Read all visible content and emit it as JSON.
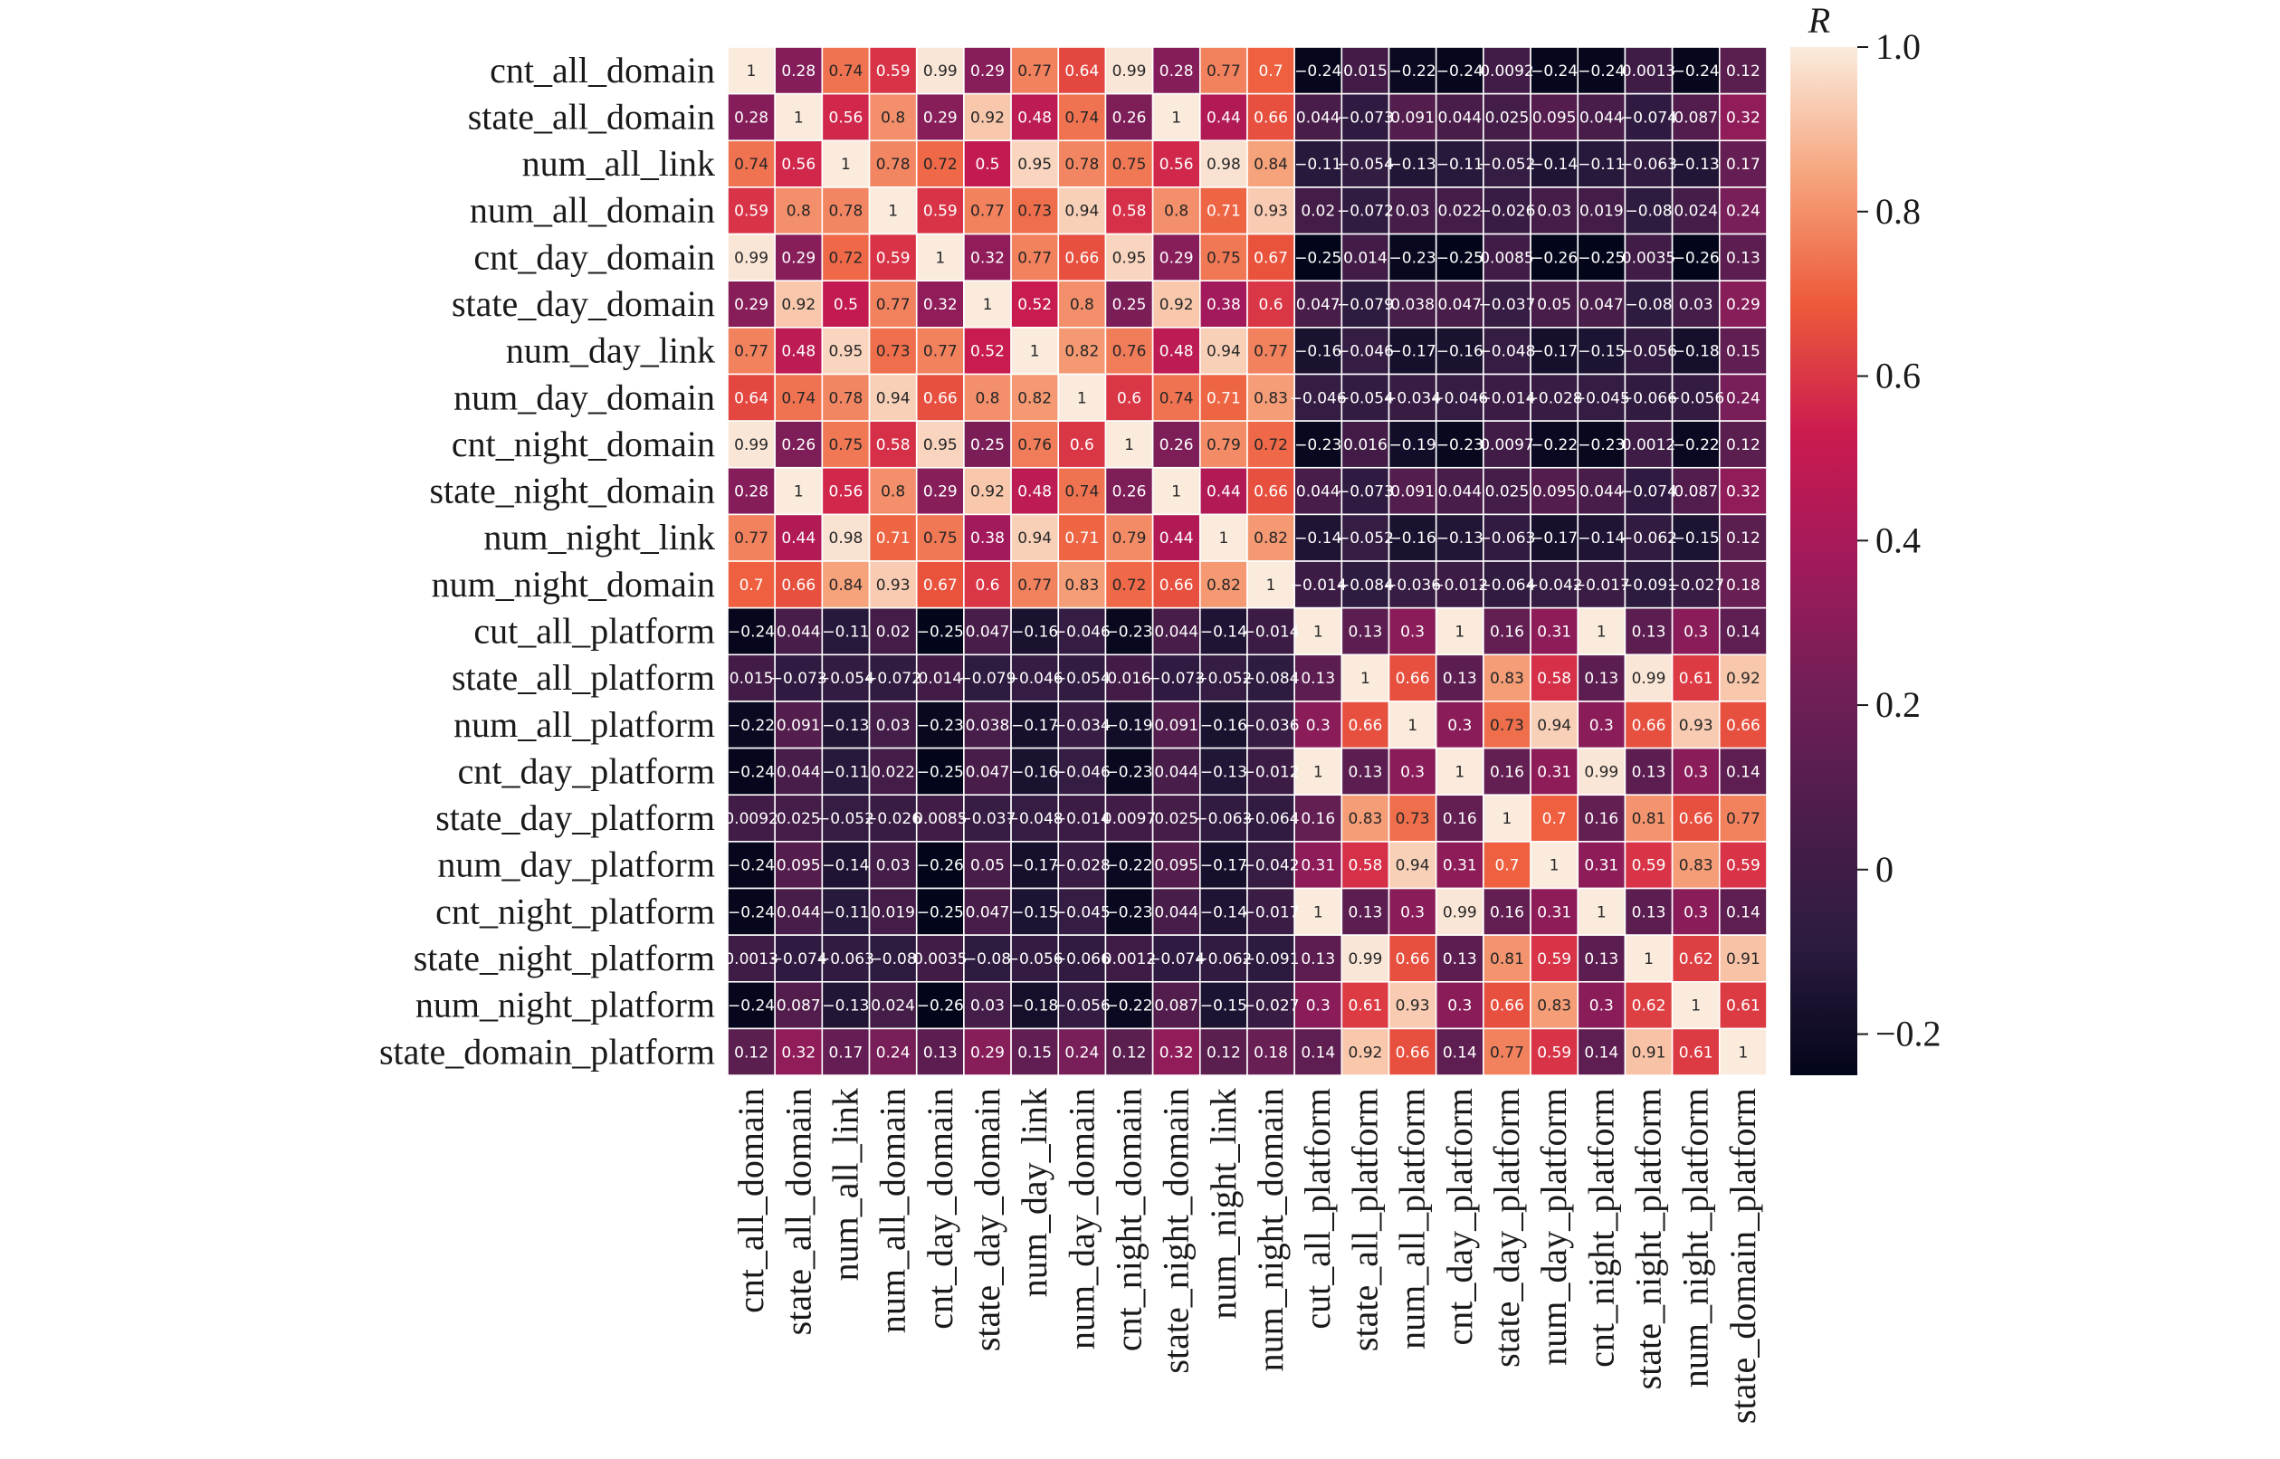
{
  "chart_data": {
    "type": "heatmap",
    "title": "",
    "colorbar": {
      "title": "R",
      "ticks": [
        1.0,
        0.8,
        0.6,
        0.4,
        0.2,
        0,
        -0.2
      ],
      "tick_labels": [
        "1.0",
        "0.8",
        "0.6",
        "0.4",
        "0.2",
        "0",
        "−0.2"
      ],
      "range": [
        -0.25,
        1.0
      ],
      "colormap": "rocket"
    },
    "rows": [
      "cnt_all_domain",
      "state_all_domain",
      "num_all_link",
      "num_all_domain",
      "cnt_day_domain",
      "state_day_domain",
      "num_day_link",
      "num_day_domain",
      "cnt_night_domain",
      "state_night_domain",
      "num_night_link",
      "num_night_domain",
      "cut_all_platform",
      "state_all_platform",
      "num_all_platform",
      "cnt_day_platform",
      "state_day_platform",
      "num_day_platform",
      "cnt_night_platform",
      "state_night_platform",
      "num_night_platform",
      "state_domain_platform"
    ],
    "columns": [
      "cnt_all_domain",
      "state_all_domain",
      "num_all_link",
      "num_all_domain",
      "cnt_day_domain",
      "state_day_domain",
      "num_day_link",
      "num_day_domain",
      "cnt_night_domain",
      "state_night_domain",
      "num_night_link",
      "num_night_domain",
      "cut_all_platform",
      "state_all_platform",
      "num_all_platform",
      "cnt_day_platform",
      "state_day_platform",
      "num_day_platform",
      "cnt_night_platform",
      "state_night_platform",
      "num_night_platform",
      "state_domain_platform"
    ],
    "values": [
      [
        "1",
        "0.28",
        "0.74",
        "0.59",
        "0.99",
        "0.29",
        "0.77",
        "0.64",
        "0.99",
        "0.28",
        "0.77",
        "0.7",
        "-0.24",
        "0.015",
        "-0.22",
        "-0.24",
        "0.0092",
        "-0.24",
        "-0.24",
        "0.0013",
        "-0.24",
        "0.12"
      ],
      [
        "0.28",
        "1",
        "0.56",
        "0.8",
        "0.29",
        "0.92",
        "0.48",
        "0.74",
        "0.26",
        "1",
        "0.44",
        "0.66",
        "0.044",
        "-0.073",
        "0.091",
        "0.044",
        "0.025",
        "0.095",
        "0.044",
        "-0.074",
        "0.087",
        "0.32"
      ],
      [
        "0.74",
        "0.56",
        "1",
        "0.78",
        "0.72",
        "0.5",
        "0.95",
        "0.78",
        "0.75",
        "0.56",
        "0.98",
        "0.84",
        "-0.11",
        "-0.054",
        "-0.13",
        "-0.11",
        "-0.052",
        "-0.14",
        "-0.11",
        "-0.063",
        "-0.13",
        "0.17"
      ],
      [
        "0.59",
        "0.8",
        "0.78",
        "1",
        "0.59",
        "0.77",
        "0.73",
        "0.94",
        "0.58",
        "0.8",
        "0.71",
        "0.93",
        "0.02",
        "-0.072",
        "0.03",
        "0.022",
        "-0.026",
        "0.03",
        "0.019",
        "-0.08",
        "0.024",
        "0.24"
      ],
      [
        "0.99",
        "0.29",
        "0.72",
        "0.59",
        "1",
        "0.32",
        "0.77",
        "0.66",
        "0.95",
        "0.29",
        "0.75",
        "0.67",
        "-0.25",
        "0.014",
        "-0.23",
        "-0.25",
        "0.0085",
        "-0.26",
        "-0.25",
        "0.0035",
        "-0.26",
        "0.13"
      ],
      [
        "0.29",
        "0.92",
        "0.5",
        "0.77",
        "0.32",
        "1",
        "0.52",
        "0.8",
        "0.25",
        "0.92",
        "0.38",
        "0.6",
        "0.047",
        "-0.079",
        "0.038",
        "0.047",
        "-0.037",
        "0.05",
        "0.047",
        "-0.08",
        "0.03",
        "0.29"
      ],
      [
        "0.77",
        "0.48",
        "0.95",
        "0.73",
        "0.77",
        "0.52",
        "1",
        "0.82",
        "0.76",
        "0.48",
        "0.94",
        "0.77",
        "-0.16",
        "-0.046",
        "-0.17",
        "-0.16",
        "-0.048",
        "-0.17",
        "-0.15",
        "-0.056",
        "-0.18",
        "0.15"
      ],
      [
        "0.64",
        "0.74",
        "0.78",
        "0.94",
        "0.66",
        "0.8",
        "0.82",
        "1",
        "0.6",
        "0.74",
        "0.71",
        "0.83",
        "-0.046",
        "-0.054",
        "-0.034",
        "-0.046",
        "-0.014",
        "-0.028",
        "-0.045",
        "-0.066",
        "-0.056",
        "0.24"
      ],
      [
        "0.99",
        "0.26",
        "0.75",
        "0.58",
        "0.95",
        "0.25",
        "0.76",
        "0.6",
        "1",
        "0.26",
        "0.79",
        "0.72",
        "-0.23",
        "0.016",
        "-0.19",
        "-0.23",
        "0.0097",
        "-0.22",
        "-0.23",
        "0.0012",
        "-0.22",
        "0.12"
      ],
      [
        "0.28",
        "1",
        "0.56",
        "0.8",
        "0.29",
        "0.92",
        "0.48",
        "0.74",
        "0.26",
        "1",
        "0.44",
        "0.66",
        "0.044",
        "-0.073",
        "0.091",
        "0.044",
        "0.025",
        "0.095",
        "0.044",
        "-0.074",
        "0.087",
        "0.32"
      ],
      [
        "0.77",
        "0.44",
        "0.98",
        "0.71",
        "0.75",
        "0.38",
        "0.94",
        "0.71",
        "0.79",
        "0.44",
        "1",
        "0.82",
        "-0.14",
        "-0.052",
        "-0.16",
        "-0.13",
        "-0.063",
        "-0.17",
        "-0.14",
        "-0.062",
        "-0.15",
        "0.12"
      ],
      [
        "0.7",
        "0.66",
        "0.84",
        "0.93",
        "0.67",
        "0.6",
        "0.77",
        "0.83",
        "0.72",
        "0.66",
        "0.82",
        "1",
        "-0.014",
        "-0.084",
        "-0.036",
        "-0.012",
        "-0.064",
        "-0.042",
        "-0.017",
        "-0.091",
        "-0.027",
        "0.18"
      ],
      [
        "-0.24",
        "0.044",
        "-0.11",
        "0.02",
        "-0.25",
        "0.047",
        "-0.16",
        "-0.046",
        "-0.23",
        "0.044",
        "-0.14",
        "-0.014",
        "1",
        "0.13",
        "0.3",
        "1",
        "0.16",
        "0.31",
        "1",
        "0.13",
        "0.3",
        "0.14"
      ],
      [
        "0.015",
        "-0.073",
        "-0.054",
        "-0.072",
        "0.014",
        "-0.079",
        "-0.046",
        "-0.054",
        "0.016",
        "-0.073",
        "-0.052",
        "-0.084",
        "0.13",
        "1",
        "0.66",
        "0.13",
        "0.83",
        "0.58",
        "0.13",
        "0.99",
        "0.61",
        "0.92"
      ],
      [
        "-0.22",
        "0.091",
        "-0.13",
        "0.03",
        "-0.23",
        "0.038",
        "-0.17",
        "-0.034",
        "-0.19",
        "0.091",
        "-0.16",
        "-0.036",
        "0.3",
        "0.66",
        "1",
        "0.3",
        "0.73",
        "0.94",
        "0.3",
        "0.66",
        "0.93",
        "0.66"
      ],
      [
        "-0.24",
        "0.044",
        "-0.11",
        "0.022",
        "-0.25",
        "0.047",
        "-0.16",
        "-0.046",
        "-0.23",
        "0.044",
        "-0.13",
        "-0.012",
        "1",
        "0.13",
        "0.3",
        "1",
        "0.16",
        "0.31",
        "0.99",
        "0.13",
        "0.3",
        "0.14"
      ],
      [
        "0.0092",
        "0.025",
        "-0.052",
        "-0.026",
        "0.0085",
        "-0.037",
        "-0.048",
        "-0.014",
        "0.0097",
        "0.025",
        "-0.063",
        "-0.064",
        "0.16",
        "0.83",
        "0.73",
        "0.16",
        "1",
        "0.7",
        "0.16",
        "0.81",
        "0.66",
        "0.77"
      ],
      [
        "-0.24",
        "0.095",
        "-0.14",
        "0.03",
        "-0.26",
        "0.05",
        "-0.17",
        "-0.028",
        "-0.22",
        "0.095",
        "-0.17",
        "-0.042",
        "0.31",
        "0.58",
        "0.94",
        "0.31",
        "0.7",
        "1",
        "0.31",
        "0.59",
        "0.83",
        "0.59"
      ],
      [
        "-0.24",
        "0.044",
        "-0.11",
        "0.019",
        "-0.25",
        "0.047",
        "-0.15",
        "-0.045",
        "-0.23",
        "0.044",
        "-0.14",
        "-0.017",
        "1",
        "0.13",
        "0.3",
        "0.99",
        "0.16",
        "0.31",
        "1",
        "0.13",
        "0.3",
        "0.14"
      ],
      [
        "0.0013",
        "-0.074",
        "-0.063",
        "-0.08",
        "0.0035",
        "-0.08",
        "-0.056",
        "-0.066",
        "0.0012",
        "-0.074",
        "-0.062",
        "-0.091",
        "0.13",
        "0.99",
        "0.66",
        "0.13",
        "0.81",
        "0.59",
        "0.13",
        "1",
        "0.62",
        "0.91"
      ],
      [
        "-0.24",
        "0.087",
        "-0.13",
        "0.024",
        "-0.26",
        "0.03",
        "-0.18",
        "-0.056",
        "-0.22",
        "0.087",
        "-0.15",
        "-0.027",
        "0.3",
        "0.61",
        "0.93",
        "0.3",
        "0.66",
        "0.83",
        "0.3",
        "0.62",
        "1",
        "0.61"
      ],
      [
        "0.12",
        "0.32",
        "0.17",
        "0.24",
        "0.13",
        "0.29",
        "0.15",
        "0.24",
        "0.12",
        "0.32",
        "0.12",
        "0.18",
        "0.14",
        "0.92",
        "0.66",
        "0.14",
        "0.77",
        "0.59",
        "0.14",
        "0.91",
        "0.61",
        "1"
      ]
    ]
  }
}
